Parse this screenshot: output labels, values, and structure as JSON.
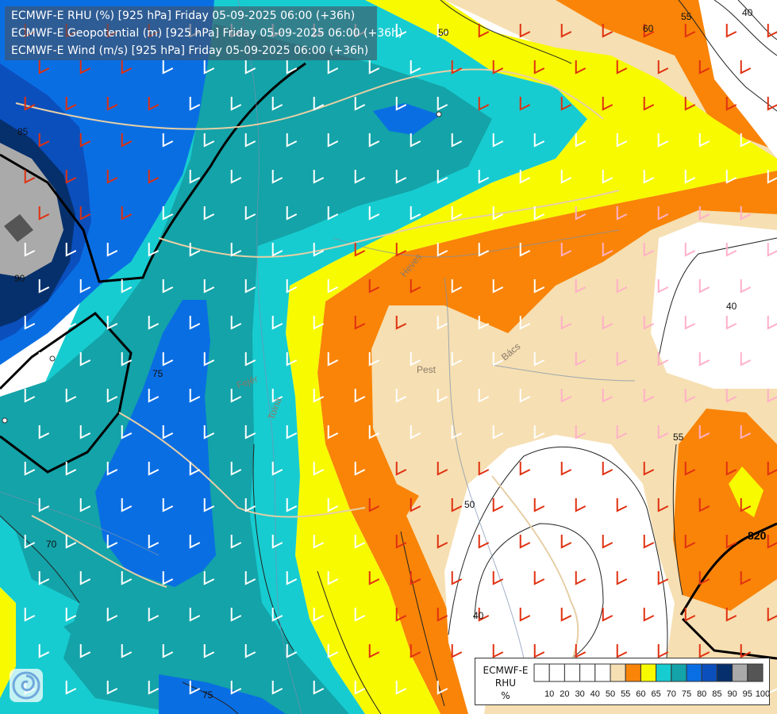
{
  "header": {
    "lines": [
      "ECMWF-E RHU (%) [925 hPa] Friday 05-09-2025 06:00 (+36h)",
      "ECMWF-E Geopotential (m) [925 hPa] Friday 05-09-2025 06:00 (+36h)",
      "ECMWF-E Wind (m/s) [925 hPa] Friday 05-09-2025 06:00 (+36h)"
    ]
  },
  "legend": {
    "title_lines": [
      "ECMWF-E",
      "RHU",
      "%"
    ],
    "tick_labels": [
      "10",
      "20",
      "30",
      "40",
      "50",
      "55",
      "60",
      "65",
      "70",
      "75",
      "80",
      "85",
      "90",
      "95",
      "100"
    ],
    "colors": [
      "#ffffff",
      "#ffffff",
      "#ffffff",
      "#ffffff",
      "#ffffff",
      "#f6dfb2",
      "#f98408",
      "#f8fb00",
      "#17ccd0",
      "#13a3a8",
      "#0a6ee3",
      "#0b4fbd",
      "#06306c",
      "#aaaaaa",
      "#555555"
    ]
  },
  "map": {
    "colors": {
      "rh_40": "#ffffff",
      "rh_55": "#f6dfb2",
      "rh_60": "#f98408",
      "rh_65": "#f8fb00",
      "rh_70": "#17ccd0",
      "rh_75": "#13a3a8",
      "rh_80": "#0a6ee3",
      "rh_85": "#0b4fbd",
      "rh_90": "#06306c",
      "rh_95": "#aaaaaa",
      "rh_100": "#555555"
    },
    "contour_labels": [
      "50",
      "55",
      "60",
      "40",
      "85",
      "90",
      "75",
      "70",
      "50",
      "55",
      "40",
      "40",
      "75"
    ],
    "geopotential_label": "820",
    "place_labels": [
      "Pest",
      "Bács",
      "Heves",
      "Tolna",
      "Fejér"
    ]
  },
  "logo": {
    "icon": "ecmwf-swirl-icon"
  }
}
